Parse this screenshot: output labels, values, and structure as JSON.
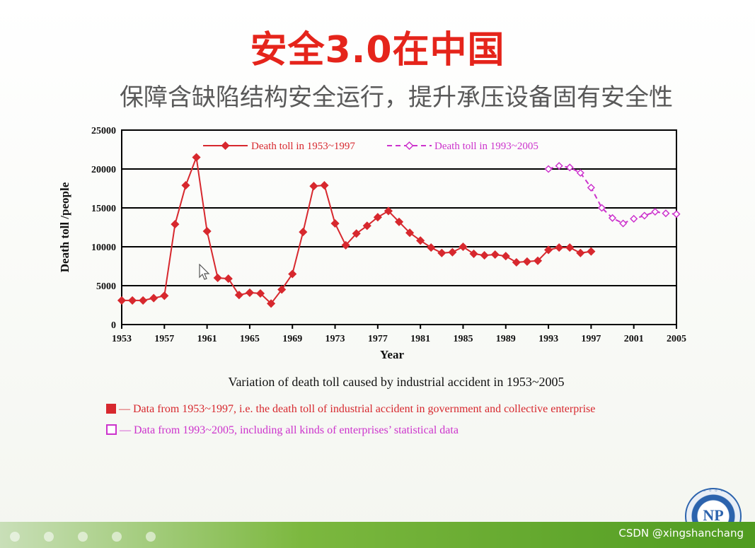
{
  "slide": {
    "title": "安全3.0在中国",
    "subtitle": "保障含缺陷结构安全运行，提升承压设备固有安全性",
    "caption": "Variation of death toll caused by industrial accident in 1953~2005",
    "note_red": "Data from 1953~1997, i.e. the death toll of industrial accident in government and collective enterprise",
    "note_magenta": "Data from 1993~2005, including all kinds of enterprises’ statistical data",
    "watermark": "CSDN @xingshanchang",
    "logo_text": "NP"
  },
  "colors": {
    "title": "#e5241b",
    "series_red": "#d7282e",
    "series_magenta": "#cc33cc",
    "footer_green": "#5aa324"
  },
  "chart_data": {
    "type": "line",
    "xlabel": "Year",
    "ylabel": "Death toll /people",
    "xlim": [
      1953,
      2005
    ],
    "ylim": [
      0,
      25000
    ],
    "x_ticks": [
      1953,
      1957,
      1961,
      1965,
      1969,
      1973,
      1977,
      1981,
      1985,
      1989,
      1993,
      1997,
      2001,
      2005
    ],
    "y_ticks": [
      0,
      5000,
      10000,
      15000,
      20000,
      25000
    ],
    "grid": "horizontal",
    "legend_position": "top",
    "series": [
      {
        "name": "Death toll in 1953~1997",
        "style": "solid",
        "marker": "filled-diamond",
        "x": [
          1953,
          1954,
          1955,
          1956,
          1957,
          1958,
          1959,
          1960,
          1961,
          1962,
          1963,
          1964,
          1965,
          1966,
          1967,
          1968,
          1969,
          1970,
          1971,
          1972,
          1973,
          1974,
          1975,
          1976,
          1977,
          1978,
          1979,
          1980,
          1981,
          1982,
          1983,
          1984,
          1985,
          1986,
          1987,
          1988,
          1989,
          1990,
          1991,
          1992,
          1993,
          1994,
          1995,
          1996,
          1997
        ],
        "values": [
          3100,
          3100,
          3100,
          3400,
          3700,
          12900,
          17900,
          21500,
          12000,
          6000,
          5900,
          3800,
          4100,
          4000,
          2700,
          4500,
          6500,
          11900,
          17800,
          17900,
          13000,
          10200,
          11700,
          12700,
          13800,
          14600,
          13200,
          11800,
          10800,
          9900,
          9200,
          9300,
          10000,
          9100,
          8900,
          9000,
          8800,
          8000,
          8100,
          8200,
          9600,
          9900,
          9900,
          9200,
          9400
        ]
      },
      {
        "name": "Death toll in 1993~2005",
        "style": "dashed",
        "marker": "open-diamond",
        "x": [
          1993,
          1994,
          1995,
          1996,
          1997,
          1998,
          1999,
          2000,
          2001,
          2002,
          2003,
          2004,
          2005
        ],
        "values": [
          20000,
          20400,
          20200,
          19500,
          17600,
          15000,
          13700,
          13000,
          13600,
          14000,
          14500,
          14300,
          14200
        ]
      }
    ]
  }
}
